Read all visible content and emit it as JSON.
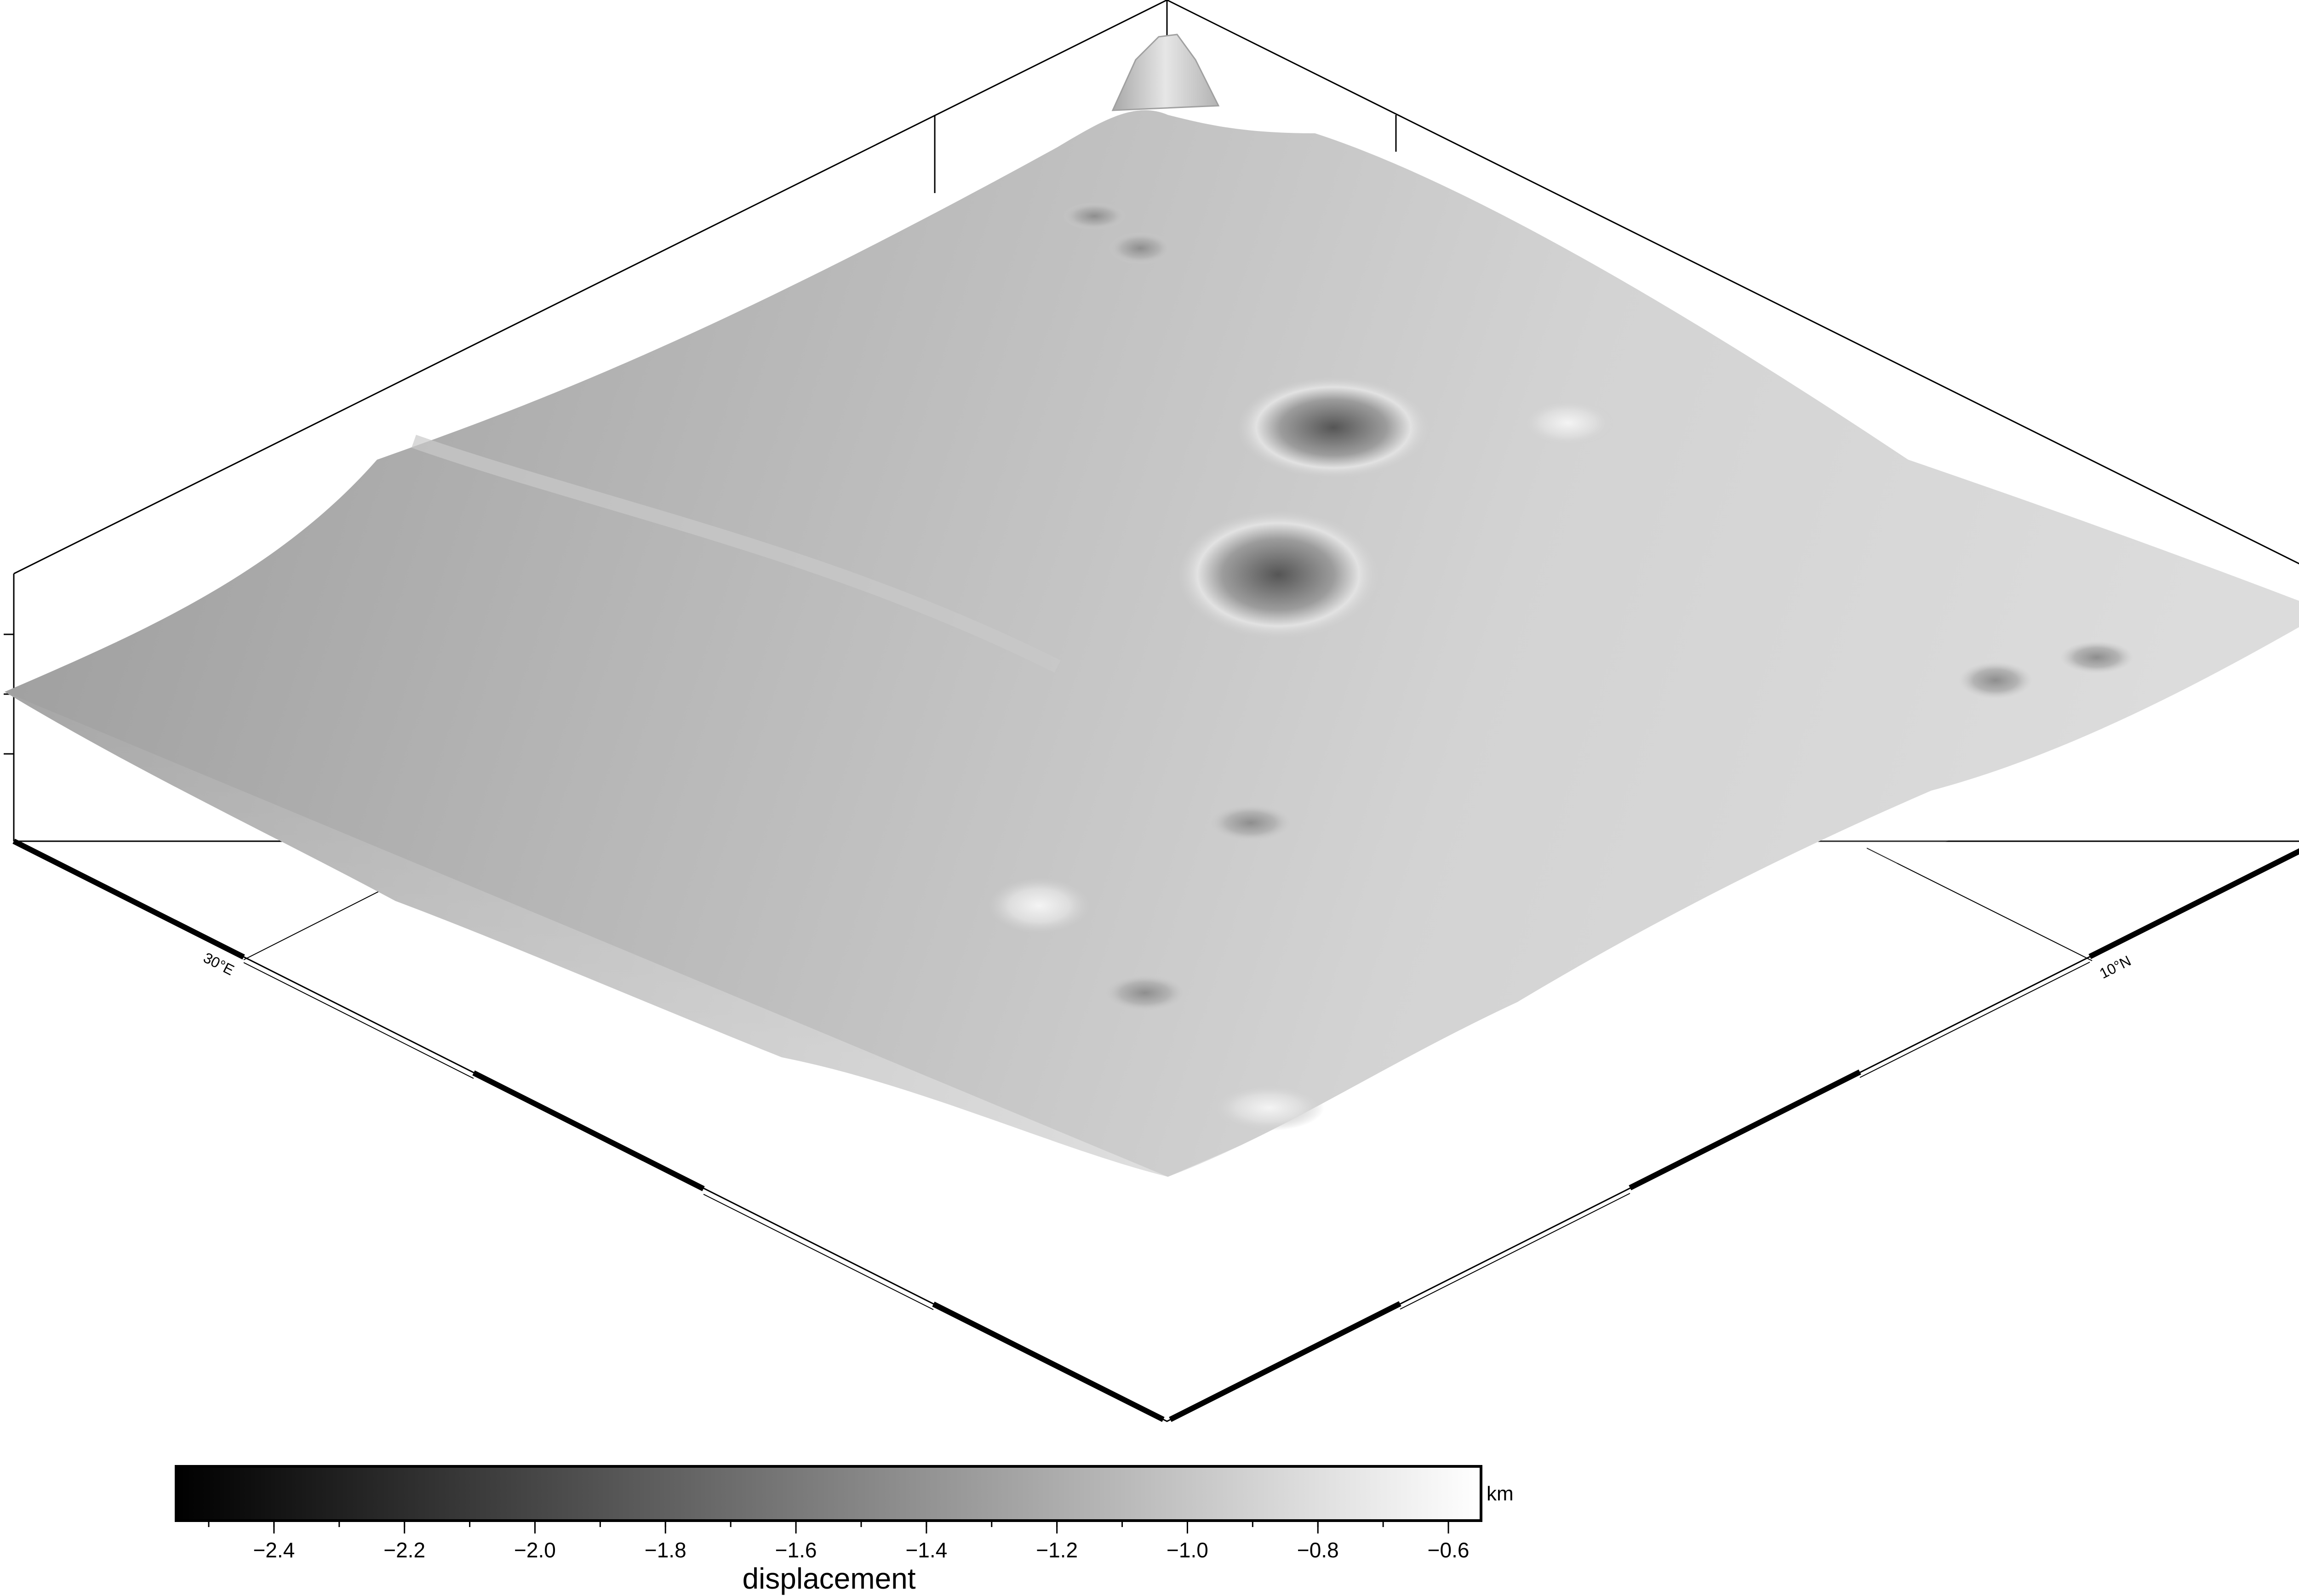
{
  "map": {
    "type": "3D perspective surface (grayscale shaded relief)",
    "colormap": [
      "#000000",
      "#ffffff"
    ],
    "x_axis": {
      "label": "30°E"
    },
    "y_axis": {
      "label": "10°N"
    }
  },
  "colorbar": {
    "label": "displacement",
    "unit": "km",
    "range": [
      -2.55,
      -0.55
    ],
    "ticks": [
      "−2.4",
      "−2.2",
      "−2.0",
      "−1.8",
      "−1.6",
      "−1.4",
      "−1.2",
      "−1.0",
      "−0.8",
      "−0.6"
    ],
    "tick_values": [
      -2.4,
      -2.2,
      -2.0,
      -1.8,
      -1.6,
      -1.4,
      -1.2,
      -1.0,
      -0.8,
      -0.6
    ]
  }
}
